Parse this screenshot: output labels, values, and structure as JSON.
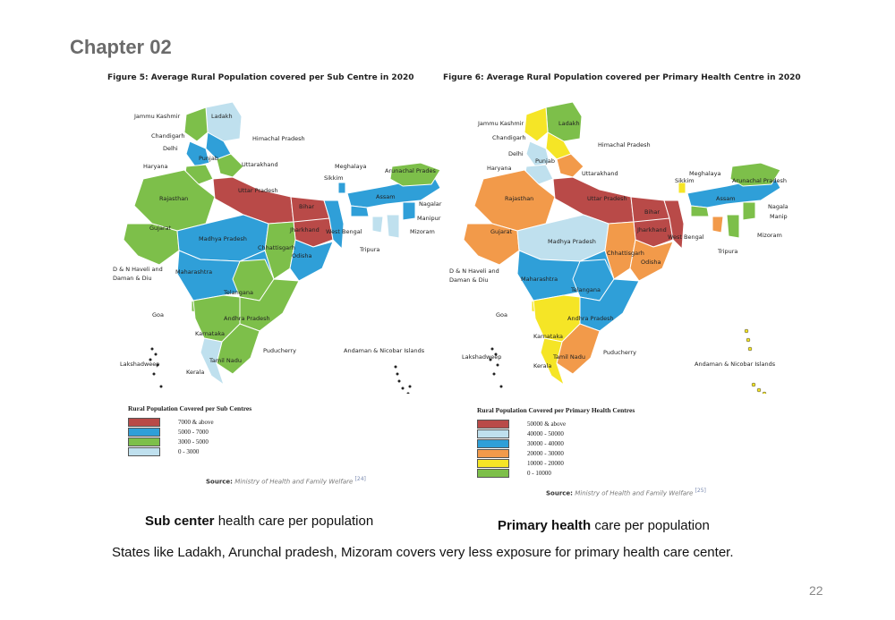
{
  "chapter": "Chapter 02",
  "figures": [
    {
      "title": "Figure 5: Average Rural Population covered per Sub Centre in 2020",
      "legend_title": "Rural Population Covered per Sub Centres",
      "legend": [
        {
          "label": "7000 & above",
          "color": "#b94a48"
        },
        {
          "label": "5000 - 7000",
          "color": "#2f9fd8"
        },
        {
          "label": "3000 - 5000",
          "color": "#7dbf4a"
        },
        {
          "label": "0 - 3000",
          "color": "#bfe0ee"
        }
      ],
      "source_label": "Source:",
      "source_text": "Ministry of Health and Family Welfare",
      "source_ref": "[24]",
      "states": [
        {
          "name": "Jammu Kashmir"
        },
        {
          "name": "Ladakh"
        },
        {
          "name": "Chandigarh"
        },
        {
          "name": "Himachal Pradesh"
        },
        {
          "name": "Delhi"
        },
        {
          "name": "Punjab"
        },
        {
          "name": "Uttarakhand"
        },
        {
          "name": "Haryana"
        },
        {
          "name": "Meghalaya"
        },
        {
          "name": "Arunachal Prades"
        },
        {
          "name": "Sikkim"
        },
        {
          "name": "Uttar Pradesh"
        },
        {
          "name": "Assam"
        },
        {
          "name": "Rajasthan"
        },
        {
          "name": "Bihar"
        },
        {
          "name": "Nagalar"
        },
        {
          "name": "Gujarat"
        },
        {
          "name": "Jharkhand"
        },
        {
          "name": "Manipur"
        },
        {
          "name": "West Bengal"
        },
        {
          "name": "Mizoram"
        },
        {
          "name": "Madhya Pradesh"
        },
        {
          "name": "Chhattisgarh"
        },
        {
          "name": "Tripura"
        },
        {
          "name": "Odisha"
        },
        {
          "name": "D & N Haveli and"
        },
        {
          "name": "Daman & Diu"
        },
        {
          "name": "Maharashtra"
        },
        {
          "name": "Telangana"
        },
        {
          "name": "Goa"
        },
        {
          "name": "Andhra Pradesh"
        },
        {
          "name": "Karnataka"
        },
        {
          "name": "Andaman & Nicobar Islands"
        },
        {
          "name": "Puducherry"
        },
        {
          "name": "Lakshadweep"
        },
        {
          "name": "Tamil Nadu"
        },
        {
          "name": "Kerala"
        }
      ]
    },
    {
      "title": "Figure 6: Average Rural Population covered per Primary Health Centre in 2020",
      "legend_title": "Rural Population Covered per Primary Health Centres",
      "legend": [
        {
          "label": "50000 & above",
          "color": "#b94a48"
        },
        {
          "label": "40000 - 50000",
          "color": "#bfe0ee"
        },
        {
          "label": "30000 - 40000",
          "color": "#2f9fd8"
        },
        {
          "label": "20000 - 30000",
          "color": "#f29a4a"
        },
        {
          "label": "10000 - 20000",
          "color": "#f5e526"
        },
        {
          "label": "0 - 10000",
          "color": "#7dbf4a"
        }
      ],
      "source_label": "Source:",
      "source_text": "Ministry of Health and Family Welfare",
      "source_ref": "[25]",
      "states": [
        {
          "name": "Jammu Kashmir"
        },
        {
          "name": "Ladakh"
        },
        {
          "name": "Chandigarh"
        },
        {
          "name": "Himachal Pradesh"
        },
        {
          "name": "Delhi"
        },
        {
          "name": "Punjab"
        },
        {
          "name": "Uttarakhand"
        },
        {
          "name": "Haryana"
        },
        {
          "name": "Meghalaya"
        },
        {
          "name": "Arunachal Pradesh"
        },
        {
          "name": "Sikkim"
        },
        {
          "name": "Uttar Pradesh"
        },
        {
          "name": "Assam"
        },
        {
          "name": "Rajasthan"
        },
        {
          "name": "Bihar"
        },
        {
          "name": "Nagaland"
        },
        {
          "name": "Gujarat"
        },
        {
          "name": "Jharkhand"
        },
        {
          "name": "Manipur"
        },
        {
          "name": "West Bengal"
        },
        {
          "name": "Mizoram"
        },
        {
          "name": "Madhya Pradesh"
        },
        {
          "name": "Chhattisgarh"
        },
        {
          "name": "Tripura"
        },
        {
          "name": "Odisha"
        },
        {
          "name": "D & N Haveli and"
        },
        {
          "name": "Daman & Diu"
        },
        {
          "name": "Maharashtra"
        },
        {
          "name": "Telangana"
        },
        {
          "name": "Goa"
        },
        {
          "name": "Andhra Pradesh"
        },
        {
          "name": "Karnataka"
        },
        {
          "name": "Puducherry"
        },
        {
          "name": "Lakshadweep"
        },
        {
          "name": "Andaman & Nicobar Islands"
        },
        {
          "name": "Tamil Nadu"
        },
        {
          "name": "Kerala"
        }
      ]
    }
  ],
  "captions": [
    {
      "bold": "Sub center",
      "rest": " health care per population"
    },
    {
      "bold": "Primary health",
      "rest": " care per population"
    }
  ],
  "summary": "States like Ladakh, Arunchal pradesh, Mizoram covers very less exposure for  primary health care center.",
  "page_number": "22"
}
